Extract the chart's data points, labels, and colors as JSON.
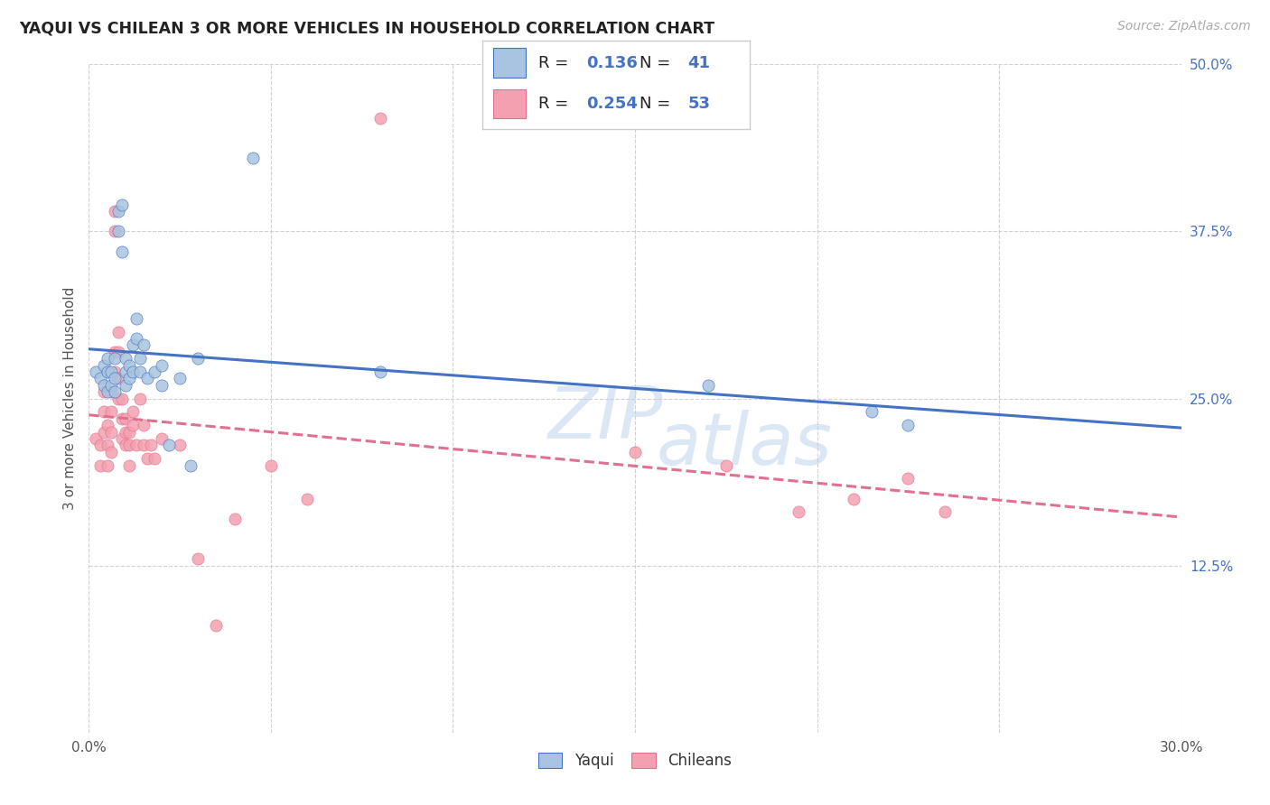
{
  "title": "YAQUI VS CHILEAN 3 OR MORE VEHICLES IN HOUSEHOLD CORRELATION CHART",
  "source": "Source: ZipAtlas.com",
  "ylabel": "3 or more Vehicles in Household",
  "watermark_top": "ZIP",
  "watermark_bot": "atlas",
  "xmin": 0.0,
  "xmax": 0.3,
  "ymin": 0.0,
  "ymax": 0.5,
  "xtick_vals": [
    0.0,
    0.05,
    0.1,
    0.15,
    0.2,
    0.25,
    0.3
  ],
  "ytick_vals": [
    0.0,
    0.125,
    0.25,
    0.375,
    0.5
  ],
  "legend_R_yaqui": "0.136",
  "legend_N_yaqui": "41",
  "legend_R_chilean": "0.254",
  "legend_N_chilean": "53",
  "yaqui_color": "#a8c4e0",
  "chilean_color": "#f4a0b0",
  "yaqui_line_color": "#4472c4",
  "chilean_line_color": "#e07090",
  "legend_value_color": "#4472c4",
  "legend_label_color": "#222222",
  "ytick_color": "#4472c4",
  "xtick_color": "#555555",
  "yaqui_scatter": [
    [
      0.002,
      0.27
    ],
    [
      0.003,
      0.265
    ],
    [
      0.004,
      0.275
    ],
    [
      0.004,
      0.26
    ],
    [
      0.005,
      0.27
    ],
    [
      0.005,
      0.28
    ],
    [
      0.005,
      0.255
    ],
    [
      0.006,
      0.26
    ],
    [
      0.006,
      0.27
    ],
    [
      0.007,
      0.28
    ],
    [
      0.007,
      0.265
    ],
    [
      0.007,
      0.255
    ],
    [
      0.008,
      0.39
    ],
    [
      0.008,
      0.375
    ],
    [
      0.009,
      0.36
    ],
    [
      0.009,
      0.395
    ],
    [
      0.01,
      0.27
    ],
    [
      0.01,
      0.26
    ],
    [
      0.01,
      0.28
    ],
    [
      0.011,
      0.275
    ],
    [
      0.011,
      0.265
    ],
    [
      0.012,
      0.29
    ],
    [
      0.012,
      0.27
    ],
    [
      0.013,
      0.31
    ],
    [
      0.013,
      0.295
    ],
    [
      0.014,
      0.28
    ],
    [
      0.014,
      0.27
    ],
    [
      0.015,
      0.29
    ],
    [
      0.016,
      0.265
    ],
    [
      0.018,
      0.27
    ],
    [
      0.02,
      0.275
    ],
    [
      0.02,
      0.26
    ],
    [
      0.022,
      0.215
    ],
    [
      0.025,
      0.265
    ],
    [
      0.028,
      0.2
    ],
    [
      0.03,
      0.28
    ],
    [
      0.045,
      0.43
    ],
    [
      0.08,
      0.27
    ],
    [
      0.17,
      0.26
    ],
    [
      0.215,
      0.24
    ],
    [
      0.225,
      0.23
    ]
  ],
  "chilean_scatter": [
    [
      0.002,
      0.22
    ],
    [
      0.003,
      0.215
    ],
    [
      0.003,
      0.2
    ],
    [
      0.004,
      0.255
    ],
    [
      0.004,
      0.24
    ],
    [
      0.004,
      0.225
    ],
    [
      0.005,
      0.23
    ],
    [
      0.005,
      0.215
    ],
    [
      0.005,
      0.2
    ],
    [
      0.006,
      0.255
    ],
    [
      0.006,
      0.24
    ],
    [
      0.006,
      0.225
    ],
    [
      0.006,
      0.21
    ],
    [
      0.007,
      0.39
    ],
    [
      0.007,
      0.375
    ],
    [
      0.007,
      0.285
    ],
    [
      0.007,
      0.27
    ],
    [
      0.008,
      0.3
    ],
    [
      0.008,
      0.285
    ],
    [
      0.008,
      0.265
    ],
    [
      0.008,
      0.25
    ],
    [
      0.009,
      0.25
    ],
    [
      0.009,
      0.235
    ],
    [
      0.009,
      0.22
    ],
    [
      0.01,
      0.235
    ],
    [
      0.01,
      0.225
    ],
    [
      0.01,
      0.215
    ],
    [
      0.011,
      0.225
    ],
    [
      0.011,
      0.215
    ],
    [
      0.011,
      0.2
    ],
    [
      0.012,
      0.24
    ],
    [
      0.012,
      0.23
    ],
    [
      0.013,
      0.215
    ],
    [
      0.014,
      0.25
    ],
    [
      0.015,
      0.23
    ],
    [
      0.015,
      0.215
    ],
    [
      0.016,
      0.205
    ],
    [
      0.017,
      0.215
    ],
    [
      0.018,
      0.205
    ],
    [
      0.02,
      0.22
    ],
    [
      0.025,
      0.215
    ],
    [
      0.03,
      0.13
    ],
    [
      0.035,
      0.08
    ],
    [
      0.04,
      0.16
    ],
    [
      0.05,
      0.2
    ],
    [
      0.06,
      0.175
    ],
    [
      0.08,
      0.46
    ],
    [
      0.15,
      0.21
    ],
    [
      0.175,
      0.2
    ],
    [
      0.195,
      0.165
    ],
    [
      0.21,
      0.175
    ],
    [
      0.225,
      0.19
    ],
    [
      0.235,
      0.165
    ]
  ],
  "background_color": "#ffffff",
  "grid_color": "#cccccc"
}
